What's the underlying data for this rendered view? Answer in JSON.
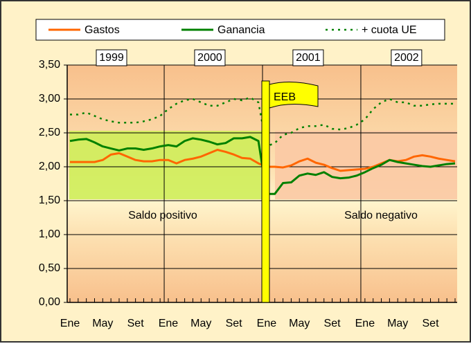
{
  "chart_data": {
    "type": "line",
    "categories": [
      "Ene",
      null,
      null,
      null,
      "May",
      null,
      null,
      null,
      "Set",
      null,
      null,
      null,
      "Ene",
      null,
      null,
      null,
      "May",
      null,
      null,
      null,
      "Set",
      null,
      null,
      null,
      "Ene",
      null,
      null,
      null,
      "May",
      null,
      null,
      null,
      "Set",
      null,
      null,
      null,
      "Ene",
      null,
      null,
      null,
      "May",
      null,
      null,
      null,
      "Set",
      null,
      null,
      null
    ],
    "series": [
      {
        "name": "Gastos",
        "color": "#ff6600",
        "dashed": false,
        "values": [
          2.07,
          2.07,
          2.07,
          2.07,
          2.1,
          2.18,
          2.2,
          2.15,
          2.1,
          2.08,
          2.08,
          2.1,
          2.1,
          2.05,
          2.1,
          2.12,
          2.15,
          2.2,
          2.25,
          2.22,
          2.18,
          2.13,
          2.12,
          2.05,
          2.0,
          2.0,
          1.99,
          2.02,
          2.08,
          2.12,
          2.06,
          2.03,
          1.98,
          1.94,
          1.95,
          1.96,
          1.97,
          2.0,
          2.05,
          2.1,
          2.08,
          2.1,
          2.15,
          2.17,
          2.15,
          2.12,
          2.1,
          2.08
        ]
      },
      {
        "name": "Ganancia",
        "color": "#008000",
        "dashed": false,
        "values": [
          2.38,
          2.4,
          2.41,
          2.36,
          2.3,
          2.27,
          2.24,
          2.27,
          2.27,
          2.25,
          2.27,
          2.3,
          2.32,
          2.3,
          2.38,
          2.42,
          2.4,
          2.37,
          2.33,
          2.35,
          2.42,
          2.42,
          2.44,
          2.38,
          1.6,
          1.6,
          1.76,
          1.77,
          1.87,
          1.9,
          1.88,
          1.92,
          1.85,
          1.83,
          1.84,
          1.87,
          1.92,
          1.98,
          2.03,
          2.1,
          2.07,
          2.05,
          2.03,
          2.01,
          2.0,
          2.02,
          2.04,
          2.05
        ]
      },
      {
        "name": "+ cuota UE",
        "color": "#008000",
        "dashed": true,
        "values": [
          2.77,
          2.77,
          2.8,
          2.75,
          2.7,
          2.67,
          2.65,
          2.65,
          2.65,
          2.67,
          2.7,
          2.75,
          2.85,
          2.93,
          2.98,
          3.0,
          2.95,
          2.9,
          2.9,
          2.95,
          3.0,
          2.98,
          3.02,
          2.95,
          2.3,
          2.35,
          2.47,
          2.5,
          2.57,
          2.6,
          2.6,
          2.62,
          2.56,
          2.55,
          2.57,
          2.62,
          2.7,
          2.85,
          2.95,
          3.0,
          2.95,
          2.95,
          2.9,
          2.9,
          2.92,
          2.93,
          2.93,
          2.93
        ]
      }
    ],
    "ylim": [
      0,
      3.5
    ],
    "yticks": [
      {
        "value": 0,
        "label": "0,00"
      },
      {
        "value": 0.5,
        "label": "0,50"
      },
      {
        "value": 1,
        "label": "1,00"
      },
      {
        "value": 1.5,
        "label": "1,50"
      },
      {
        "value": 2,
        "label": "2,00"
      },
      {
        "value": 2.5,
        "label": "2,50"
      },
      {
        "value": 3,
        "label": "3,00"
      },
      {
        "value": 3.5,
        "label": "3,50"
      }
    ],
    "grid": true,
    "legend": "top",
    "year_labels": [
      "1999",
      "2000",
      "2001",
      "2002"
    ],
    "flag_label": "EEB",
    "region_labels": [
      "Saldo positivo",
      "Saldo negativo"
    ]
  }
}
